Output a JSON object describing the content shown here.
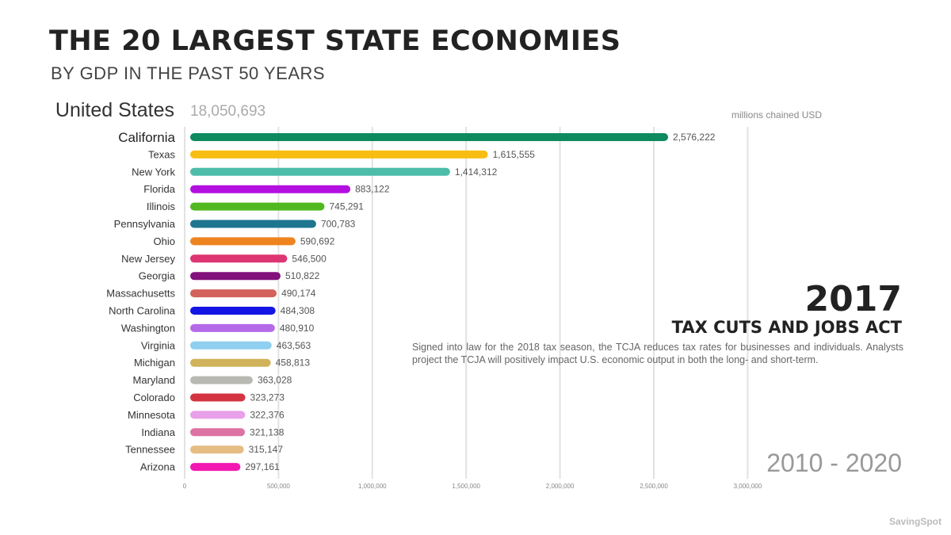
{
  "header": {
    "title": "THE 20 LARGEST STATE ECONOMIES",
    "subtitle": "BY GDP IN THE PAST 50 YEARS"
  },
  "summary": {
    "country": "United States",
    "total": "18,050,693",
    "units": "millions chained USD"
  },
  "event": {
    "year": "2017",
    "title": "TAX CUTS AND JOBS ACT",
    "description": "Signed into law for the 2018 tax season, the TCJA reduces tax rates for businesses and individuals. Analysts project the TCJA will positively impact U.S. economic output in both the long- and short-term."
  },
  "range": "2010 - 2020",
  "brand": "SavingSpot",
  "chart_data": {
    "type": "bar",
    "orientation": "horizontal",
    "categories": [
      "California",
      "Texas",
      "New York",
      "Florida",
      "Illinois",
      "Pennsylvania",
      "Ohio",
      "New Jersey",
      "Georgia",
      "Massachusetts",
      "North Carolina",
      "Washington",
      "Virginia",
      "Michigan",
      "Maryland",
      "Colorado",
      "Minnesota",
      "Indiana",
      "Tennessee",
      "Arizona"
    ],
    "values": [
      2576222,
      1615555,
      1414312,
      883122,
      745291,
      700783,
      590692,
      546500,
      510822,
      490174,
      484308,
      480910,
      463563,
      458813,
      363028,
      323273,
      322376,
      321138,
      315147,
      297161
    ],
    "value_labels": [
      "2,576,222",
      "1,615,555",
      "1,414,312",
      "883,122",
      "745,291",
      "700,783",
      "590,692",
      "546,500",
      "510,822",
      "490,174",
      "484,308",
      "480,910",
      "463,563",
      "458,813",
      "363,028",
      "323,273",
      "322,376",
      "321,138",
      "315,147",
      "297,161"
    ],
    "colors": [
      "#0e8a5f",
      "#f7bd12",
      "#4dbdaa",
      "#b30fe0",
      "#52b820",
      "#1d7590",
      "#ee8420",
      "#de3672",
      "#82117b",
      "#d3625c",
      "#1414e4",
      "#b46ae8",
      "#8fcfef",
      "#d0b35a",
      "#b9b9b3",
      "#d33440",
      "#e8a0e8",
      "#dd73a3",
      "#e5bc83",
      "#f218b1"
    ],
    "xlim": [
      0,
      3000000
    ],
    "x_ticks": [
      0,
      500000,
      1000000,
      1500000,
      2000000,
      2500000,
      3000000
    ],
    "x_tick_labels": [
      "0",
      "500,000",
      "1,000,000",
      "1,500,000",
      "2,000,000",
      "2,500,000",
      "3,000,000"
    ],
    "grid": true,
    "highlight": "California"
  }
}
